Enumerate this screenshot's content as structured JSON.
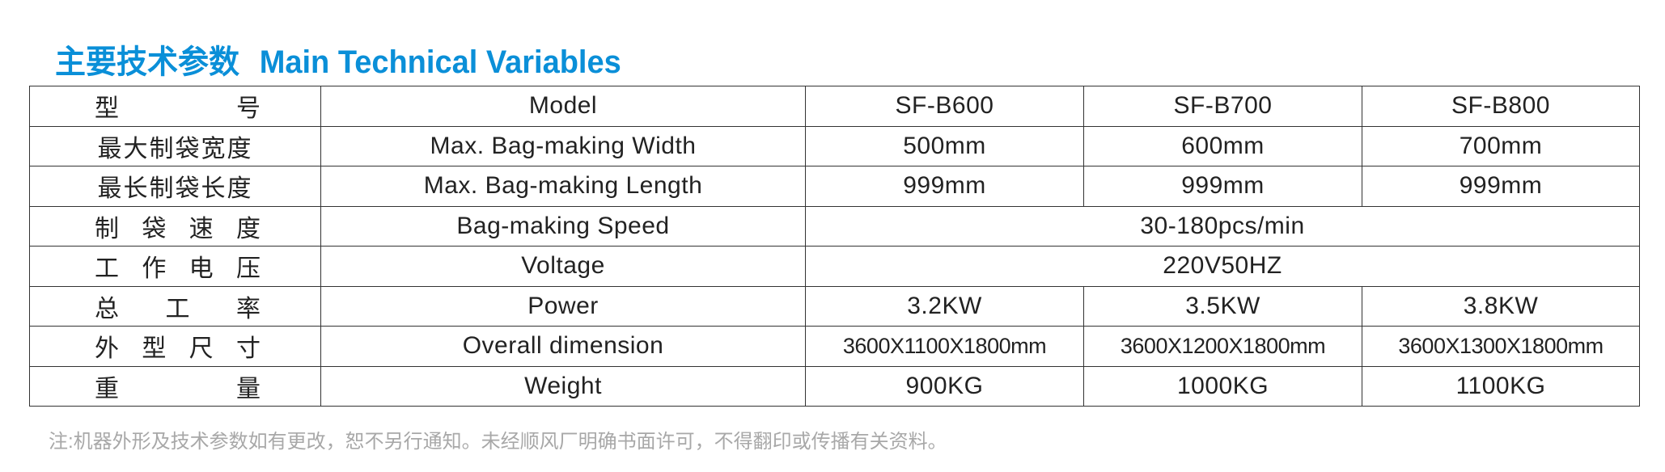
{
  "title": {
    "cn": "主要技术参数",
    "en": "Main Technical Variables",
    "color": "#0a8fd8"
  },
  "rows": [
    {
      "cn": "型　　　　号",
      "en": "Model",
      "values": [
        "SF-B600",
        "SF-B700",
        "SF-B800"
      ],
      "spread": true
    },
    {
      "cn": "最大制袋宽度",
      "en": "Max. Bag-making Width",
      "values": [
        "500mm",
        "600mm",
        "700mm"
      ]
    },
    {
      "cn": "最长制袋长度",
      "en": "Max. Bag-making Length",
      "values": [
        "999mm",
        "999mm",
        "999mm"
      ]
    },
    {
      "cn": "制袋速度",
      "en": "Bag-making Speed",
      "merged": "30-180pcs/min",
      "spread": true
    },
    {
      "cn": "工作电压",
      "en": "Voltage",
      "merged": "220V50HZ",
      "spread": true
    },
    {
      "cn": "总工率",
      "en": "Power",
      "values": [
        "3.2KW",
        "3.5KW",
        "3.8KW"
      ],
      "spread": true
    },
    {
      "cn": "外型尺寸",
      "en": "Overall dimension",
      "values": [
        "3600X1100X1800mm",
        "3600X1200X1800mm",
        "3600X1300X1800mm"
      ],
      "spread": true,
      "dim": true
    },
    {
      "cn": "重量",
      "en": "Weight",
      "values": [
        "900KG",
        "1000KG",
        "1100KG"
      ],
      "spread": true
    }
  ],
  "note": "注:机器外形及技术参数如有更改，恕不另行通知。未经顺风厂明确书面许可，不得翻印或传播有关资料。"
}
